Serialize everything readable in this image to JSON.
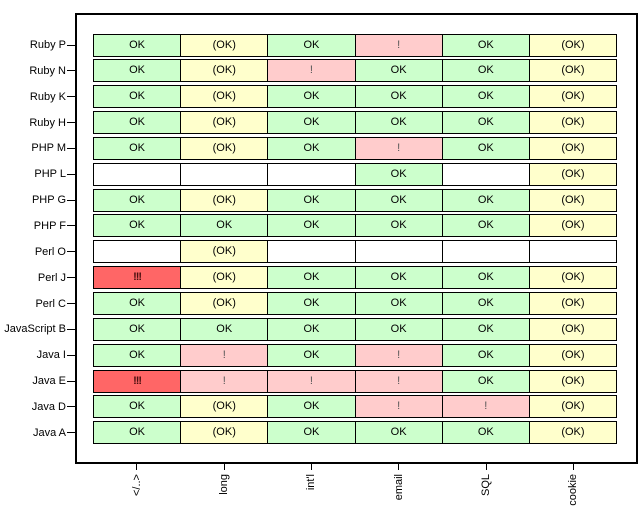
{
  "chart_data": {
    "type": "heatmap",
    "title": "",
    "xlabel": "",
    "ylabel": "",
    "grid": false,
    "legend_position": "none",
    "columns": [
      "</..>",
      "long",
      "int'l",
      "email",
      "SQL",
      "cookie"
    ],
    "rows": [
      "Ruby P",
      "Ruby N",
      "Ruby K",
      "Ruby H",
      "PHP M",
      "PHP L",
      "PHP G",
      "PHP F",
      "Perl O",
      "Perl J",
      "Perl C",
      "JavaScript B",
      "Java I",
      "Java E",
      "Java D",
      "Java A"
    ],
    "cells": [
      [
        "ok",
        "okp",
        "ok",
        "warn",
        "ok",
        "okp"
      ],
      [
        "ok",
        "okp",
        "warn",
        "ok",
        "ok",
        "okp"
      ],
      [
        "ok",
        "okp",
        "ok",
        "ok",
        "ok",
        "okp"
      ],
      [
        "ok",
        "okp",
        "ok",
        "ok",
        "ok",
        "okp"
      ],
      [
        "ok",
        "okp",
        "ok",
        "warn",
        "ok",
        "okp"
      ],
      [
        "blank",
        "blank",
        "blank",
        "ok",
        "blank",
        "okp"
      ],
      [
        "ok",
        "okp",
        "ok",
        "ok",
        "ok",
        "okp"
      ],
      [
        "ok",
        "ok",
        "ok",
        "ok",
        "ok",
        "okp"
      ],
      [
        "blank",
        "okp",
        "blank",
        "blank",
        "blank",
        "blank"
      ],
      [
        "bad",
        "okp",
        "ok",
        "ok",
        "ok",
        "okp"
      ],
      [
        "ok",
        "okp",
        "ok",
        "ok",
        "ok",
        "okp"
      ],
      [
        "ok",
        "ok",
        "ok",
        "ok",
        "ok",
        "okp"
      ],
      [
        "ok",
        "warn",
        "ok",
        "warn",
        "ok",
        "okp"
      ],
      [
        "bad",
        "warn",
        "warn",
        "warn",
        "ok",
        "okp"
      ],
      [
        "ok",
        "okp",
        "ok",
        "warn",
        "warn",
        "okp"
      ],
      [
        "ok",
        "okp",
        "ok",
        "ok",
        "ok",
        "okp"
      ]
    ],
    "statuses": {
      "ok": {
        "label": "OK",
        "bg": "#ccffcc",
        "fg": "#000000"
      },
      "okp": {
        "label": "(OK)",
        "bg": "#ffffcc",
        "fg": "#000000"
      },
      "warn": {
        "label": "!",
        "bg": "#ffcccc",
        "fg": "#555555"
      },
      "bad": {
        "label": "!!!",
        "bg": "#ff6666",
        "fg": "#4a0f0f"
      },
      "blank": {
        "label": "",
        "bg": "#ffffff",
        "fg": "#000000"
      }
    },
    "colors": {
      "border": "#000000",
      "background": "#ffffff"
    }
  }
}
